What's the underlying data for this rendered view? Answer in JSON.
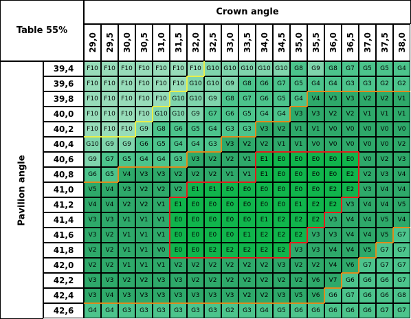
{
  "table": {
    "corner_label": "Table 55%",
    "column_header": "Crown angle",
    "row_header": "Pavilion angle",
    "columns": [
      "29,0",
      "29,5",
      "30,0",
      "30,5",
      "31,0",
      "31,5",
      "32,0",
      "32,5",
      "33,0",
      "33,5",
      "34,0",
      "34,5",
      "35,0",
      "35,5",
      "36,0",
      "36,5",
      "37,0",
      "37,5",
      "38,0"
    ],
    "rows": [
      {
        "angle": "39,4",
        "grades": [
          "F10",
          "F10",
          "F10",
          "F10",
          "F10",
          "F10",
          "F10",
          "G10",
          "G10",
          "G10",
          "G10",
          "G10",
          "G8",
          "G9",
          "G8",
          "G7",
          "G5",
          "G5",
          "G4"
        ]
      },
      {
        "angle": "39,6",
        "grades": [
          "F10",
          "F10",
          "F10",
          "F10",
          "F10",
          "F10",
          "G10",
          "G10",
          "G9",
          "G8",
          "G6",
          "G7",
          "G5",
          "G4",
          "G4",
          "G3",
          "G3",
          "G2",
          "G2"
        ]
      },
      {
        "angle": "39,8",
        "grades": [
          "F10",
          "F10",
          "F10",
          "F10",
          "F10",
          "G10",
          "G10",
          "G9",
          "G8",
          "G7",
          "G6",
          "G5",
          "G4",
          "V4",
          "V3",
          "V3",
          "V2",
          "V2",
          "V1"
        ]
      },
      {
        "angle": "40,0",
        "grades": [
          "F10",
          "F10",
          "F10",
          "F10",
          "G10",
          "G10",
          "G9",
          "G7",
          "G6",
          "G5",
          "G4",
          "G4",
          "V3",
          "V3",
          "V2",
          "V2",
          "V1",
          "V1",
          "V1"
        ]
      },
      {
        "angle": "40,2",
        "grades": [
          "F10",
          "F10",
          "F10",
          "G9",
          "G8",
          "G6",
          "G5",
          "G4",
          "G3",
          "G3",
          "V3",
          "V2",
          "V1",
          "V1",
          "V0",
          "V0",
          "V0",
          "V0",
          "V0"
        ]
      },
      {
        "angle": "40,4",
        "grades": [
          "G10",
          "G9",
          "G9",
          "G6",
          "G5",
          "G4",
          "G4",
          "G3",
          "V3",
          "V2",
          "V2",
          "V1",
          "V1",
          "V0",
          "V0",
          "V0",
          "V0",
          "V0",
          "V2"
        ]
      },
      {
        "angle": "40,6",
        "grades": [
          "G9",
          "G7",
          "G5",
          "G4",
          "G4",
          "G3",
          "V3",
          "V2",
          "V2",
          "V1",
          "E1",
          "E0",
          "E0",
          "E0",
          "E0",
          "E0",
          "V0",
          "V2",
          "V3"
        ]
      },
      {
        "angle": "40,8",
        "grades": [
          "G6",
          "G5",
          "V4",
          "V3",
          "V3",
          "V2",
          "V2",
          "V2",
          "V1",
          "V1",
          "E1",
          "E0",
          "E0",
          "E0",
          "E0",
          "E2",
          "V2",
          "V3",
          "V4"
        ]
      },
      {
        "angle": "41,0",
        "grades": [
          "V5",
          "V4",
          "V3",
          "V2",
          "V2",
          "V2",
          "E1",
          "E1",
          "E0",
          "E0",
          "E0",
          "E0",
          "E0",
          "E0",
          "E2",
          "E2",
          "V3",
          "V4",
          "V4"
        ]
      },
      {
        "angle": "41,2",
        "grades": [
          "V4",
          "V4",
          "V2",
          "V2",
          "V1",
          "E1",
          "E0",
          "E0",
          "E0",
          "E0",
          "E0",
          "E0",
          "E1",
          "E2",
          "E2",
          "V3",
          "V4",
          "V4",
          "V5"
        ]
      },
      {
        "angle": "41,4",
        "grades": [
          "V3",
          "V3",
          "V1",
          "V1",
          "V1",
          "E0",
          "E0",
          "E0",
          "E0",
          "E0",
          "E1",
          "E2",
          "E2",
          "E2",
          "V3",
          "V4",
          "V4",
          "V5",
          "V4"
        ]
      },
      {
        "angle": "41,6",
        "grades": [
          "V3",
          "V2",
          "V1",
          "V1",
          "V1",
          "E0",
          "E0",
          "E0",
          "E0",
          "E1",
          "E2",
          "E2",
          "E2",
          "V3",
          "V3",
          "V4",
          "V4",
          "V5",
          "G7"
        ]
      },
      {
        "angle": "41,8",
        "grades": [
          "V2",
          "V2",
          "V1",
          "V1",
          "V0",
          "E0",
          "E0",
          "E2",
          "E2",
          "E2",
          "E2",
          "E2",
          "V3",
          "V3",
          "V4",
          "V4",
          "V5",
          "G7",
          "G7"
        ]
      },
      {
        "angle": "42,0",
        "grades": [
          "V2",
          "V2",
          "V1",
          "V1",
          "V1",
          "V2",
          "V2",
          "V2",
          "V2",
          "V2",
          "V2",
          "V3",
          "V2",
          "V2",
          "V4",
          "V6",
          "G7",
          "G7",
          "G7"
        ]
      },
      {
        "angle": "42,2",
        "grades": [
          "V3",
          "V3",
          "V2",
          "V2",
          "V3",
          "V3",
          "V2",
          "V2",
          "V2",
          "V2",
          "V2",
          "V2",
          "V2",
          "V6",
          "V7",
          "G6",
          "G6",
          "G6",
          "G7"
        ]
      },
      {
        "angle": "42,4",
        "grades": [
          "V3",
          "V4",
          "V3",
          "V3",
          "V3",
          "V3",
          "V3",
          "V3",
          "V3",
          "V2",
          "V2",
          "V3",
          "V5",
          "V6",
          "G6",
          "G7",
          "G6",
          "G6",
          "G8"
        ]
      },
      {
        "angle": "42,6",
        "grades": [
          "G4",
          "G4",
          "G3",
          "G3",
          "G3",
          "G3",
          "G3",
          "G3",
          "G2",
          "G3",
          "G4",
          "G5",
          "G6",
          "G6",
          "G6",
          "G6",
          "G6",
          "G7",
          "G7"
        ]
      }
    ]
  },
  "colors": {
    "E": "#10b54c",
    "V": "#2ea96a",
    "G": "#4cc48c",
    "F": "#97dcb9",
    "G_light": "#7fd5ac",
    "border_red": "#e31b1b",
    "border_orange": "#e08a1c",
    "border_yellow": "#e9ef4a",
    "grid": "#000000",
    "header_bg": "#ffffff"
  }
}
